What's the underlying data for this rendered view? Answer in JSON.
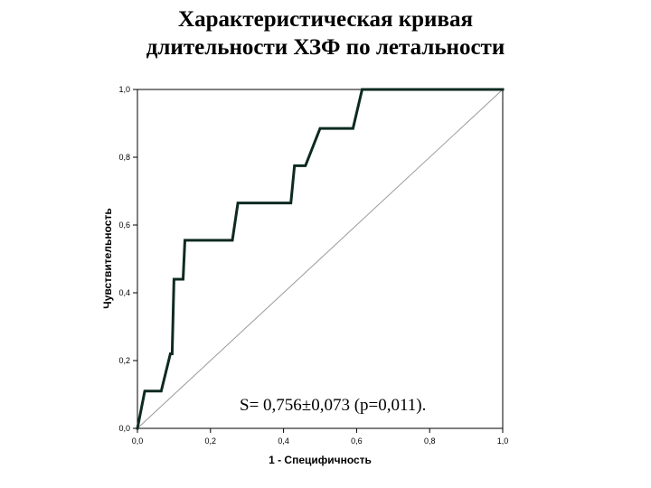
{
  "title_lines": [
    "Характеристическая кривая",
    "длительности ХЗФ по летальности"
  ],
  "chart_data": {
    "type": "line",
    "title": "Характеристическая кривая длительности ХЗФ по летальности",
    "xlabel": "1 - Специфичность",
    "ylabel": "Чувствительность",
    "xlim": [
      0,
      1
    ],
    "ylim": [
      0,
      1
    ],
    "xticks": [
      "0,0",
      "0,2",
      "0,4",
      "0,6",
      "0,8",
      "1,0"
    ],
    "yticks": [
      "0,0",
      "0,2",
      "0,4",
      "0,6",
      "0,8",
      "1,0"
    ],
    "grid": false,
    "annotation": "S= 0,756±0,073 (p=0,011).",
    "series": [
      {
        "x": [
          0,
          0.02,
          0.06,
          0.065,
          0.09,
          0.095,
          0.1,
          0.105,
          0.125,
          0.13,
          0.26,
          0.275,
          0.42,
          0.43,
          0.46,
          0.5,
          0.59,
          0.615,
          1.0
        ],
        "y": [
          0,
          0.11,
          0.11,
          0.11,
          0.22,
          0.22,
          0.44,
          0.44,
          0.44,
          0.555,
          0.555,
          0.665,
          0.665,
          0.775,
          0.775,
          0.885,
          0.885,
          1.0,
          1.0
        ],
        "color": "#0d2a22"
      },
      {
        "x": [
          0,
          1
        ],
        "y": [
          0,
          1
        ],
        "color": "#9a9a9a"
      }
    ]
  }
}
